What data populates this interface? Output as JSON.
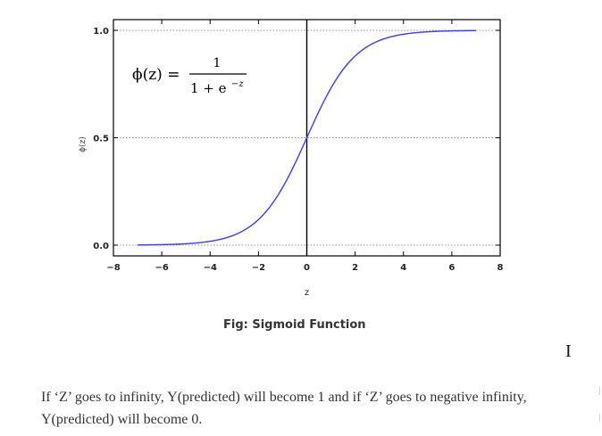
{
  "figure": {
    "caption": "Fig: Sigmoid Function",
    "formula": {
      "lhs": "ϕ(z) =",
      "numerator": "1",
      "denominator_base": "1 + e",
      "denominator_exp": "−z"
    }
  },
  "article": {
    "paragraph": "If ‘Z’ goes to infinity, Y(predicted) will become 1 and if ‘Z’ goes to negative infinity, Y(predicted) will become 0.",
    "cursor_glyph": "I"
  },
  "chart_data": {
    "type": "line",
    "title": "",
    "xlabel": "z",
    "ylabel": "ϕ(z)",
    "xlim": [
      -8,
      8
    ],
    "ylim": [
      -0.05,
      1.05
    ],
    "xticks": [
      -8,
      -6,
      -4,
      -2,
      0,
      2,
      4,
      6,
      8
    ],
    "yticks": [
      0.0,
      0.5,
      1.0
    ],
    "ytick_labels": [
      "0.0",
      "0.5",
      "1.0"
    ],
    "grid": "horizontal-dotted",
    "vline_at_x": 0,
    "series": [
      {
        "color": "#3a3aff",
        "function": "sigmoid",
        "x": [
          -7,
          -6,
          -5,
          -4,
          -3,
          -2,
          -1.5,
          -1,
          -0.5,
          0,
          0.5,
          1,
          1.5,
          2,
          3,
          4,
          5,
          6,
          7
        ],
        "values": [
          0.0009,
          0.0025,
          0.0067,
          0.018,
          0.047,
          0.119,
          0.182,
          0.269,
          0.378,
          0.5,
          0.622,
          0.731,
          0.818,
          0.881,
          0.953,
          0.982,
          0.9933,
          0.9975,
          0.9991
        ]
      }
    ]
  }
}
